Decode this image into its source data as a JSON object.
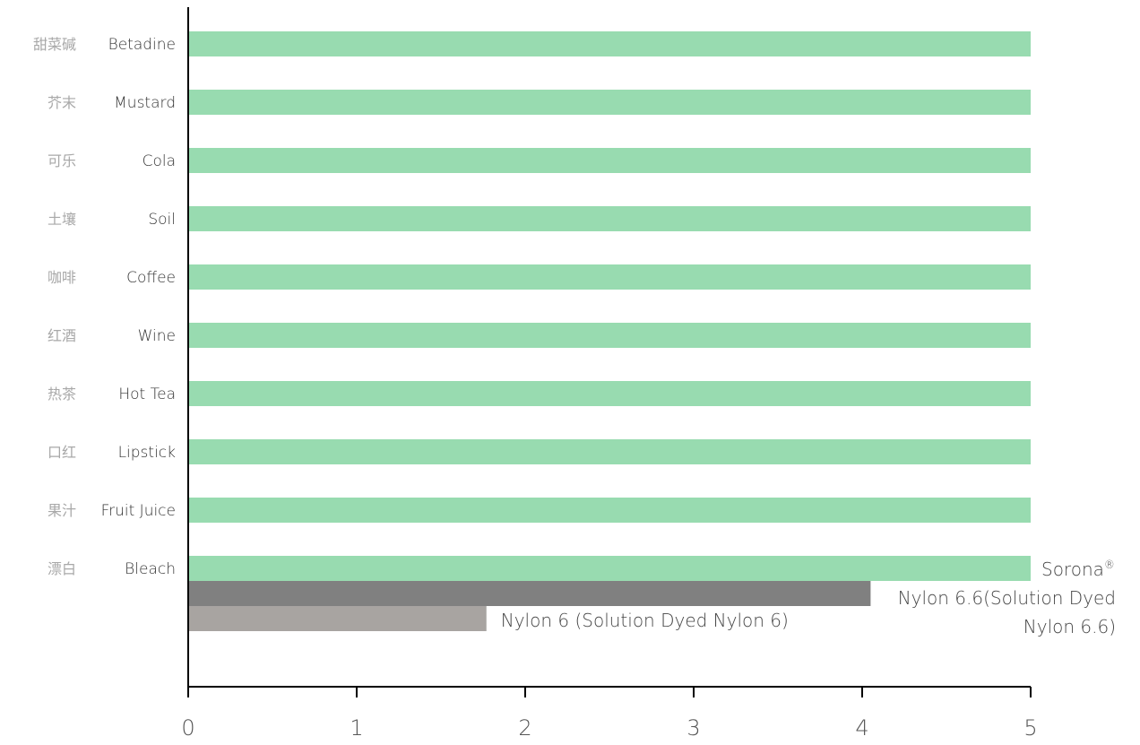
{
  "chart_data": {
    "type": "bar",
    "orientation": "horizontal",
    "categories": [
      {
        "cn": "甜菜碱",
        "en": "Betadine"
      },
      {
        "cn": "芥末",
        "en": "Mustard"
      },
      {
        "cn": "可乐",
        "en": "Cola"
      },
      {
        "cn": "土壤",
        "en": "Soil"
      },
      {
        "cn": "咖啡",
        "en": "Coffee"
      },
      {
        "cn": "红酒",
        "en": "Wine"
      },
      {
        "cn": "热茶",
        "en": "Hot Tea"
      },
      {
        "cn": "口红",
        "en": "Lipstick"
      },
      {
        "cn": "果汁",
        "en": "Fruit Juice"
      },
      {
        "cn": "漂白",
        "en": "Bleach"
      }
    ],
    "series": [
      {
        "name": "Sorona®",
        "color": "#98dbb0",
        "values": [
          5,
          5,
          5,
          5,
          5,
          5,
          5,
          5,
          5,
          5
        ]
      },
      {
        "name": "Nylon 6.6(Solution Dyed Nylon 6.6)",
        "color": "#808080",
        "values": [
          null,
          null,
          null,
          null,
          null,
          null,
          null,
          null,
          null,
          4.05
        ]
      },
      {
        "name": "Nylon 6 (Solution Dyed Nylon 6)",
        "color": "#a8a4a1",
        "values": [
          null,
          null,
          null,
          null,
          null,
          null,
          null,
          null,
          null,
          1.77
        ]
      }
    ],
    "xlim": [
      0,
      5
    ],
    "xticks": [
      "0",
      "1",
      "2",
      "3",
      "4",
      "5"
    ],
    "grid": false,
    "legend": "inline labels at bar ends"
  }
}
